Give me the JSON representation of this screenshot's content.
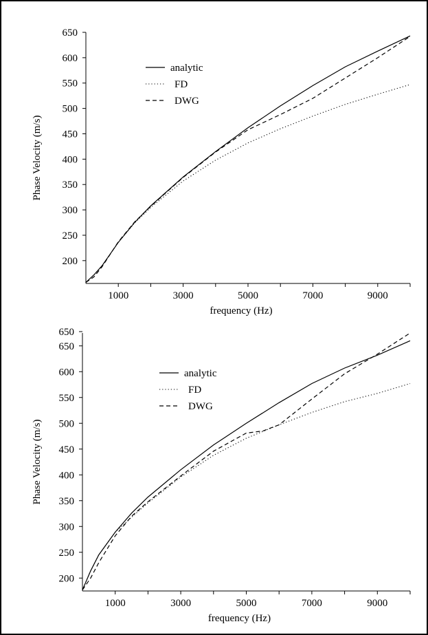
{
  "chart_data": [
    {
      "type": "line",
      "xlabel": "frequency (Hz)",
      "ylabel": "Phase Velocity (m/s)",
      "xlim": [
        0,
        10000
      ],
      "ylim": [
        155,
        650
      ],
      "xticks": [
        1000,
        3000,
        5000,
        7000,
        9000
      ],
      "yticks": [
        200,
        250,
        300,
        350,
        400,
        450,
        500,
        550,
        600,
        650
      ],
      "legend_position": "upper-left",
      "series": [
        {
          "name": "analytic",
          "style": "solid",
          "x": [
            0,
            250,
            500,
            1000,
            1500,
            2000,
            3000,
            4000,
            5000,
            6000,
            7000,
            8000,
            9000,
            10000
          ],
          "y": [
            157,
            172,
            190,
            236,
            275,
            308,
            365,
            415,
            462,
            505,
            545,
            582,
            613,
            643
          ]
        },
        {
          "name": "FD",
          "style": "dotted",
          "x": [
            0,
            250,
            500,
            1000,
            1500,
            2000,
            3000,
            4000,
            5000,
            6000,
            7000,
            8000,
            9000,
            10000
          ],
          "y": [
            157,
            172,
            190,
            236,
            274,
            305,
            357,
            398,
            432,
            460,
            485,
            508,
            528,
            547
          ]
        },
        {
          "name": "DWG",
          "style": "dashed",
          "x": [
            0,
            250,
            500,
            1000,
            1500,
            2000,
            3000,
            4000,
            5000,
            6000,
            7000,
            8000,
            9000,
            10000
          ],
          "y": [
            157,
            168,
            188,
            237,
            276,
            307,
            364,
            414,
            458,
            488,
            520,
            560,
            600,
            642
          ]
        }
      ]
    },
    {
      "type": "line",
      "xlabel": "frequency (Hz)",
      "ylabel": "Phase Velocity (m/s)",
      "xlim": [
        0,
        10000
      ],
      "ylim": [
        175,
        675
      ],
      "xticks": [
        1000,
        3000,
        5000,
        7000,
        9000
      ],
      "yticks": [
        200,
        250,
        300,
        350,
        400,
        450,
        500,
        550,
        600,
        650
      ],
      "extra_ytick_label": "650",
      "legend_position": "upper-left",
      "series": [
        {
          "name": "analytic",
          "style": "solid",
          "x": [
            0,
            250,
            500,
            1000,
            1500,
            2000,
            3000,
            4000,
            5000,
            6000,
            7000,
            8000,
            9000,
            10000
          ],
          "y": [
            177,
            214,
            245,
            289,
            326,
            357,
            410,
            458,
            500,
            540,
            577,
            607,
            632,
            660
          ]
        },
        {
          "name": "FD",
          "style": "dotted",
          "x": [
            0,
            250,
            500,
            1000,
            1500,
            2000,
            3000,
            4000,
            5000,
            6000,
            7000,
            8000,
            9000,
            10000
          ],
          "y": [
            177,
            214,
            245,
            289,
            318,
            346,
            396,
            438,
            471,
            497,
            521,
            542,
            558,
            577
          ]
        },
        {
          "name": "DWG",
          "style": "dashed",
          "x": [
            0,
            250,
            500,
            1000,
            1500,
            2000,
            3000,
            4000,
            5000,
            5500,
            6000,
            7000,
            8000,
            9000,
            10000
          ],
          "y": [
            177,
            200,
            230,
            282,
            320,
            348,
            398,
            446,
            481,
            485,
            497,
            547,
            596,
            634,
            675
          ]
        }
      ]
    }
  ]
}
